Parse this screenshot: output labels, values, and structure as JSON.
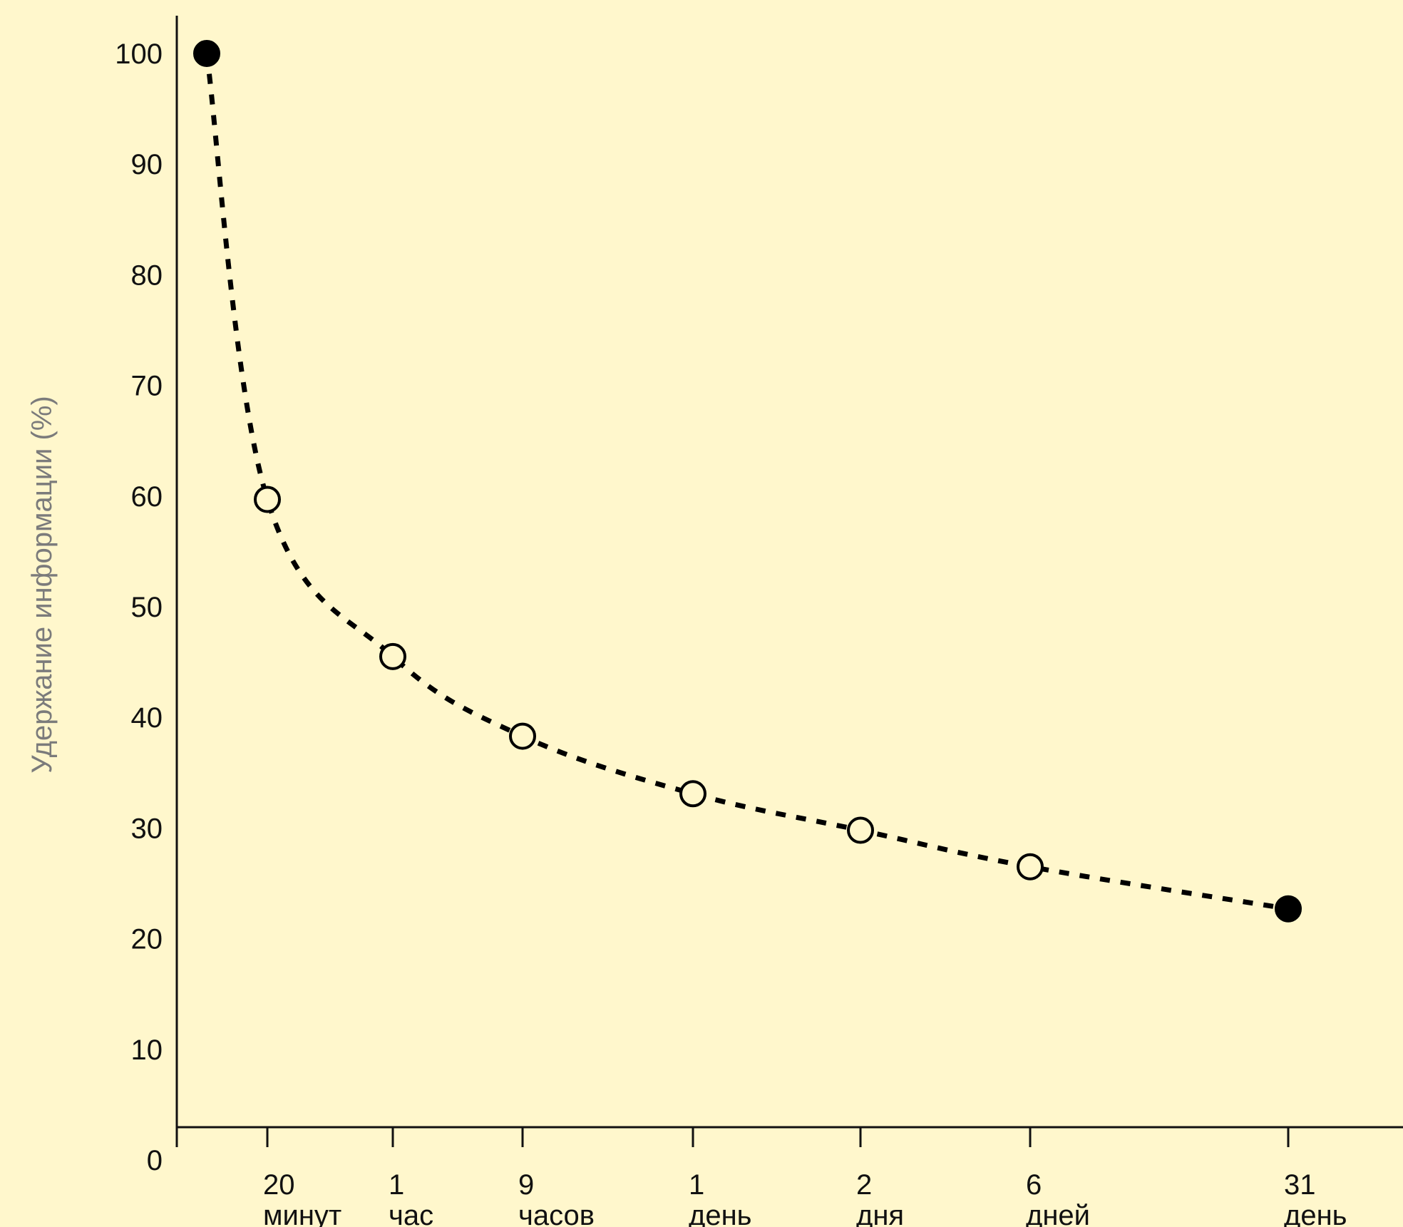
{
  "chart_data": {
    "type": "line",
    "title": "",
    "xlabel": "",
    "ylabel": "Удержание информации (%)",
    "ylim": [
      0,
      100
    ],
    "yticks": [
      "100",
      "90",
      "80",
      "70",
      "60",
      "50",
      "40",
      "30",
      "20",
      "10",
      "0"
    ],
    "grid": false,
    "legend": "none",
    "line_style": "dotted",
    "line_color": "#000000",
    "background_color": "#FFF7CC",
    "x": [
      {
        "line1": "",
        "line2": ""
      },
      {
        "line1": "20",
        "line2": "минут"
      },
      {
        "line1": "1",
        "line2": "час"
      },
      {
        "line1": "9",
        "line2": "часов"
      },
      {
        "line1": "1",
        "line2": "день"
      },
      {
        "line1": "2",
        "line2": "дня"
      },
      {
        "line1": "6",
        "line2": "дней"
      },
      {
        "line1": "31",
        "line2": "день"
      }
    ],
    "series": [
      {
        "values": [
          100,
          59.7,
          45.5,
          38.3,
          33.1,
          29.8,
          26.5,
          22.7
        ],
        "markers": [
          "filled",
          "open",
          "open",
          "open",
          "open",
          "open",
          "open",
          "filled"
        ]
      }
    ]
  }
}
